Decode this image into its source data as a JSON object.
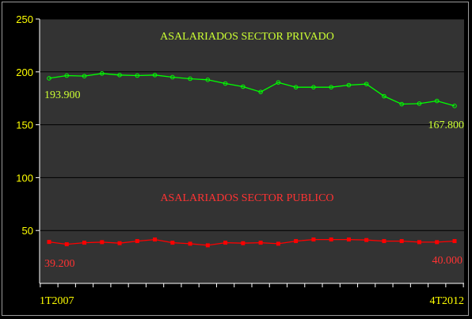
{
  "chart_data": {
    "type": "line",
    "title": "",
    "xlabel": "",
    "ylabel": "",
    "ylim": [
      0,
      250
    ],
    "yticks": [
      "250",
      "200",
      "150",
      "100",
      "50"
    ],
    "yticks_values": [
      250,
      200,
      150,
      100,
      50
    ],
    "x_first_label": "1T2007",
    "x_last_label": "4T2012",
    "grid": "horizontal",
    "colors": {
      "background": "#000000",
      "plot_background": "#333333",
      "grid": "#000000",
      "axis_text": "#ffff00",
      "privado": "#00ff00",
      "privado_title": "#ccff33",
      "publico": "#ff0000",
      "publico_title": "#ff3333"
    },
    "series": [
      {
        "annotation": "ASALARIADOS SECTOR PRIVADO",
        "first_value_label": "193.900",
        "last_value_label": "167.800",
        "values": [
          193.9,
          196.5,
          196.0,
          198.5,
          197.0,
          196.5,
          197.0,
          195.0,
          193.5,
          192.5,
          189.0,
          186.0,
          181.0,
          190.0,
          185.5,
          185.5,
          185.5,
          187.5,
          188.5,
          177.0,
          169.5,
          170.0,
          172.5,
          167.8
        ]
      },
      {
        "annotation": "ASALARIADOS SECTOR PUBLICO",
        "first_value_label": "39.200",
        "last_value_label": "40.000",
        "values": [
          39.2,
          37.0,
          38.5,
          39.0,
          38.0,
          40.0,
          41.5,
          38.5,
          37.5,
          36.0,
          38.5,
          38.0,
          38.5,
          37.5,
          40.0,
          41.5,
          41.5,
          41.5,
          41.0,
          40.0,
          40.0,
          39.0,
          39.0,
          40.0
        ]
      }
    ]
  }
}
